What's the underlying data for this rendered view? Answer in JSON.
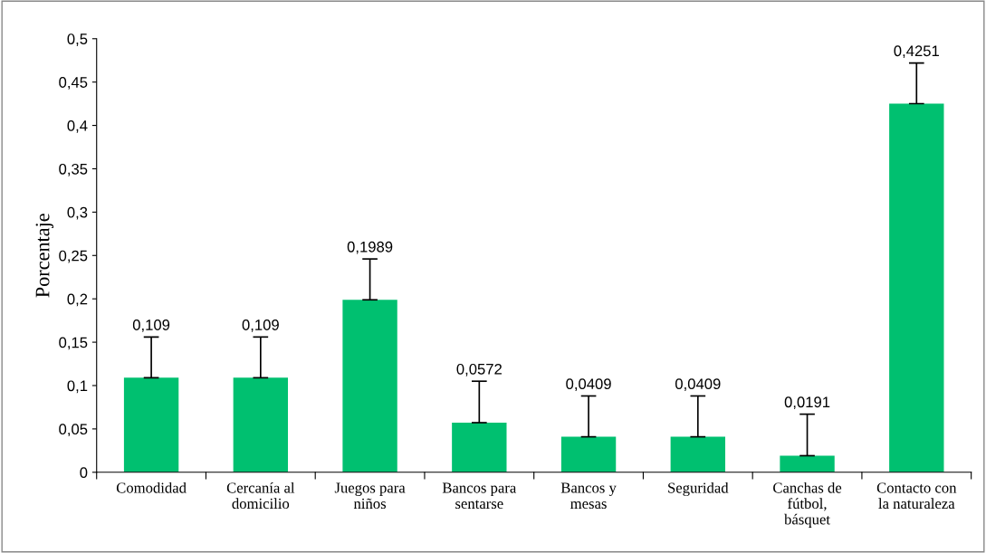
{
  "chart_data": {
    "type": "bar",
    "ylabel": "Porcentaje",
    "categories": [
      "Comodidad",
      "Cercanía al\ndomicilio",
      "Juegos para\nniños",
      "Bancos para\nsentarse",
      "Bancos y\nmesas",
      "Seguridad",
      "Canchas de\nfútbol,\nbásquet",
      "Contacto con\nla naturaleza"
    ],
    "values": [
      0.109,
      0.109,
      0.1989,
      0.0572,
      0.0409,
      0.0409,
      0.0191,
      0.4251
    ],
    "errors": [
      [
        0.109,
        0.156
      ],
      [
        0.109,
        0.156
      ],
      [
        0.1989,
        0.246
      ],
      [
        0.0572,
        0.105
      ],
      [
        0.0409,
        0.088
      ],
      [
        0.0409,
        0.088
      ],
      [
        0.0191,
        0.067
      ],
      [
        0.4251,
        0.472
      ]
    ],
    "value_labels": [
      "0,109",
      "0,109",
      "0,1989",
      "0,0572",
      "0,0409",
      "0,0409",
      "0,0191",
      "0,4251"
    ],
    "color": "#00c070",
    "ylim": [
      0,
      0.5
    ],
    "yticks": [
      {
        "value": 0,
        "label": "0"
      },
      {
        "value": 0.05,
        "label": "0,05"
      },
      {
        "value": 0.1,
        "label": "0,1"
      },
      {
        "value": 0.15,
        "label": "0,15"
      },
      {
        "value": 0.2,
        "label": "0,2"
      },
      {
        "value": 0.25,
        "label": "0,25"
      },
      {
        "value": 0.3,
        "label": "0,3"
      },
      {
        "value": 0.35,
        "label": "0,35"
      },
      {
        "value": 0.4,
        "label": "0,4"
      },
      {
        "value": 0.45,
        "label": "0,45"
      },
      {
        "value": 0.5,
        "label": "0,5"
      }
    ],
    "grid": false,
    "legend": false
  }
}
